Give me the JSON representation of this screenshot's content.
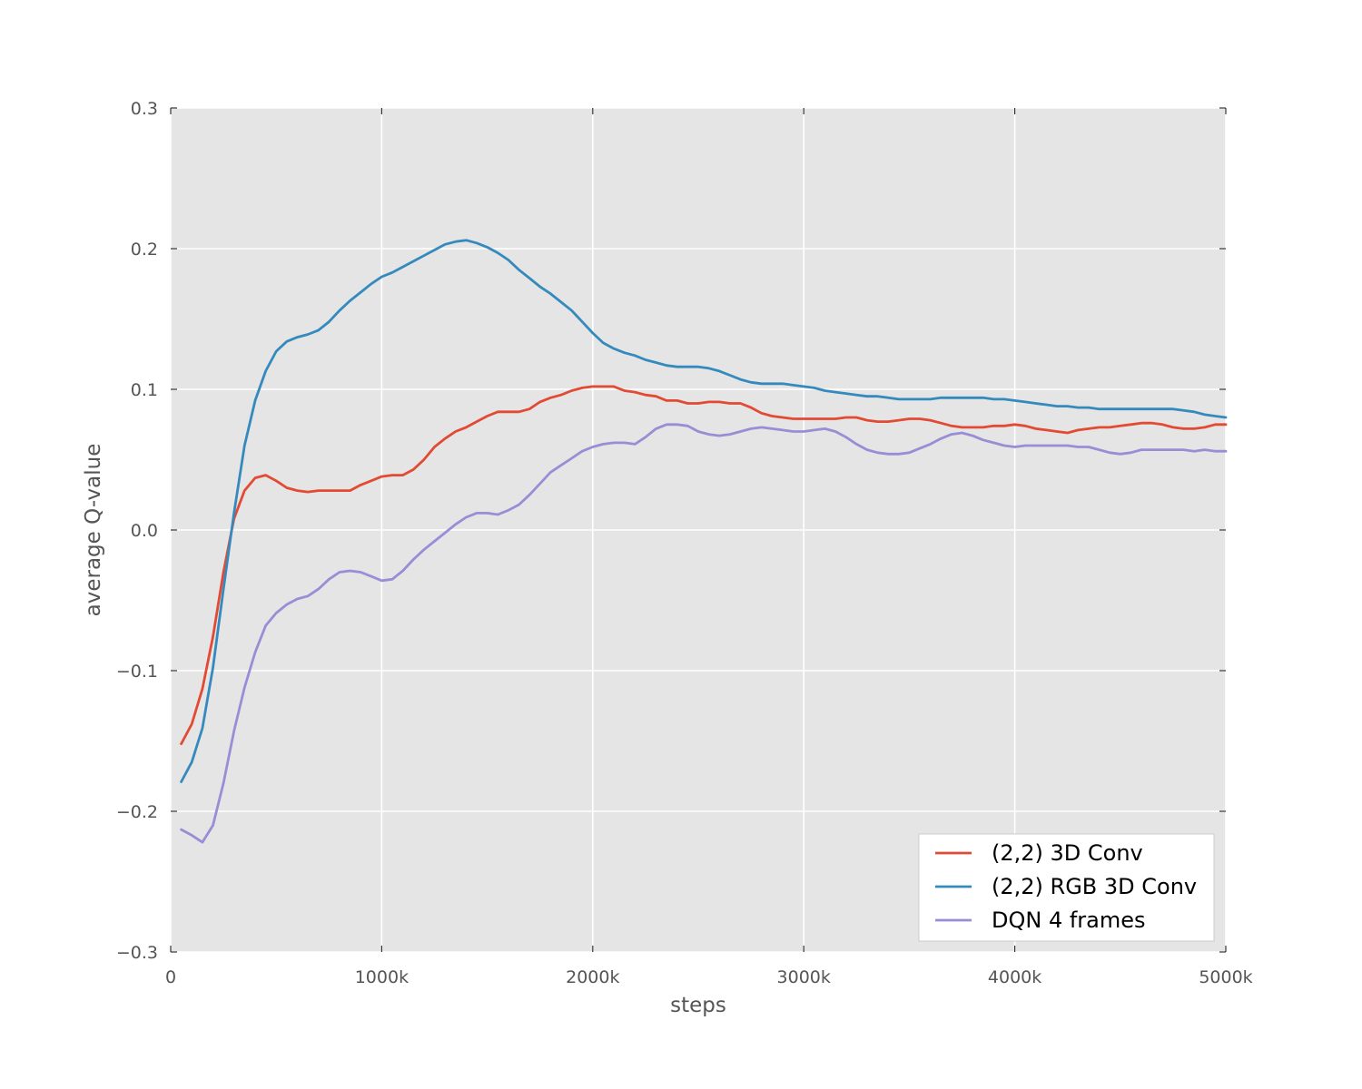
{
  "chart_data": {
    "type": "line",
    "title": "",
    "xlabel": "steps",
    "ylabel": "average Q-value",
    "xlim": [
      0,
      5000
    ],
    "ylim": [
      -0.3,
      0.3
    ],
    "x_ticks": [
      0,
      1000,
      2000,
      3000,
      4000,
      5000
    ],
    "x_tick_labels": [
      "0",
      "1000k",
      "2000k",
      "3000k",
      "4000k",
      "5000k"
    ],
    "y_ticks": [
      -0.3,
      -0.2,
      -0.1,
      0.0,
      0.1,
      0.2,
      0.3
    ],
    "y_tick_labels": [
      "−0.3",
      "−0.2",
      "−0.1",
      "0.0",
      "0.1",
      "0.2",
      "0.3"
    ],
    "grid": true,
    "legend_position": "bottom-right",
    "background": "#e5e5e5",
    "x": [
      50,
      100,
      150,
      200,
      250,
      300,
      350,
      400,
      450,
      500,
      550,
      600,
      650,
      700,
      750,
      800,
      850,
      900,
      950,
      1000,
      1050,
      1100,
      1150,
      1200,
      1250,
      1300,
      1350,
      1400,
      1450,
      1500,
      1550,
      1600,
      1650,
      1700,
      1750,
      1800,
      1850,
      1900,
      1950,
      2000,
      2050,
      2100,
      2150,
      2200,
      2250,
      2300,
      2350,
      2400,
      2450,
      2500,
      2550,
      2600,
      2650,
      2700,
      2750,
      2800,
      2850,
      2900,
      2950,
      3000,
      3050,
      3100,
      3150,
      3200,
      3250,
      3300,
      3350,
      3400,
      3450,
      3500,
      3550,
      3600,
      3650,
      3700,
      3750,
      3800,
      3850,
      3900,
      3950,
      4000,
      4050,
      4100,
      4150,
      4200,
      4250,
      4300,
      4350,
      4400,
      4450,
      4500,
      4550,
      4600,
      4650,
      4700,
      4750,
      4800,
      4850,
      4900,
      4950,
      5000
    ],
    "series": [
      {
        "name": "(2,2) 3D Conv",
        "color": "#e24a33",
        "values": [
          -0.152,
          -0.138,
          -0.113,
          -0.076,
          -0.03,
          0.008,
          0.028,
          0.037,
          0.039,
          0.035,
          0.03,
          0.028,
          0.027,
          0.028,
          0.028,
          0.028,
          0.028,
          0.032,
          0.035,
          0.038,
          0.039,
          0.039,
          0.043,
          0.05,
          0.059,
          0.065,
          0.07,
          0.073,
          0.077,
          0.081,
          0.084,
          0.084,
          0.084,
          0.086,
          0.091,
          0.094,
          0.096,
          0.099,
          0.101,
          0.102,
          0.102,
          0.102,
          0.099,
          0.098,
          0.096,
          0.095,
          0.092,
          0.092,
          0.09,
          0.09,
          0.091,
          0.091,
          0.09,
          0.09,
          0.087,
          0.083,
          0.081,
          0.08,
          0.079,
          0.079,
          0.079,
          0.079,
          0.079,
          0.08,
          0.08,
          0.078,
          0.077,
          0.077,
          0.078,
          0.079,
          0.079,
          0.078,
          0.076,
          0.074,
          0.073,
          0.073,
          0.073,
          0.074,
          0.074,
          0.075,
          0.074,
          0.072,
          0.071,
          0.07,
          0.069,
          0.071,
          0.072,
          0.073,
          0.073,
          0.074,
          0.075,
          0.076,
          0.076,
          0.075,
          0.073,
          0.072,
          0.072,
          0.073,
          0.075,
          0.075
        ]
      },
      {
        "name": "(2,2) RGB 3D Conv",
        "color": "#348abd",
        "values": [
          -0.179,
          -0.165,
          -0.141,
          -0.098,
          -0.042,
          0.012,
          0.06,
          0.092,
          0.113,
          0.127,
          0.134,
          0.137,
          0.139,
          0.142,
          0.148,
          0.156,
          0.163,
          0.169,
          0.175,
          0.18,
          0.183,
          0.187,
          0.191,
          0.195,
          0.199,
          0.203,
          0.205,
          0.206,
          0.204,
          0.201,
          0.197,
          0.192,
          0.185,
          0.179,
          0.173,
          0.168,
          0.162,
          0.156,
          0.148,
          0.14,
          0.133,
          0.129,
          0.126,
          0.124,
          0.121,
          0.119,
          0.117,
          0.116,
          0.116,
          0.116,
          0.115,
          0.113,
          0.11,
          0.107,
          0.105,
          0.104,
          0.104,
          0.104,
          0.103,
          0.102,
          0.101,
          0.099,
          0.098,
          0.097,
          0.096,
          0.095,
          0.095,
          0.094,
          0.093,
          0.093,
          0.093,
          0.093,
          0.094,
          0.094,
          0.094,
          0.094,
          0.094,
          0.093,
          0.093,
          0.092,
          0.091,
          0.09,
          0.089,
          0.088,
          0.088,
          0.087,
          0.087,
          0.086,
          0.086,
          0.086,
          0.086,
          0.086,
          0.086,
          0.086,
          0.086,
          0.085,
          0.084,
          0.082,
          0.081,
          0.08
        ]
      },
      {
        "name": "DQN 4 frames",
        "color": "#988ed5",
        "values": [
          -0.213,
          -0.217,
          -0.222,
          -0.21,
          -0.18,
          -0.143,
          -0.112,
          -0.087,
          -0.068,
          -0.059,
          -0.053,
          -0.049,
          -0.047,
          -0.042,
          -0.035,
          -0.03,
          -0.029,
          -0.03,
          -0.033,
          -0.036,
          -0.035,
          -0.029,
          -0.021,
          -0.014,
          -0.008,
          -0.002,
          0.004,
          0.009,
          0.012,
          0.012,
          0.011,
          0.014,
          0.018,
          0.025,
          0.033,
          0.041,
          0.046,
          0.051,
          0.056,
          0.059,
          0.061,
          0.062,
          0.062,
          0.061,
          0.066,
          0.072,
          0.075,
          0.075,
          0.074,
          0.07,
          0.068,
          0.067,
          0.068,
          0.07,
          0.072,
          0.073,
          0.072,
          0.071,
          0.07,
          0.07,
          0.071,
          0.072,
          0.07,
          0.066,
          0.061,
          0.057,
          0.055,
          0.054,
          0.054,
          0.055,
          0.058,
          0.061,
          0.065,
          0.068,
          0.069,
          0.067,
          0.064,
          0.062,
          0.06,
          0.059,
          0.06,
          0.06,
          0.06,
          0.06,
          0.06,
          0.059,
          0.059,
          0.057,
          0.055,
          0.054,
          0.055,
          0.057,
          0.057,
          0.057,
          0.057,
          0.057,
          0.056,
          0.057,
          0.056,
          0.056
        ]
      }
    ]
  }
}
